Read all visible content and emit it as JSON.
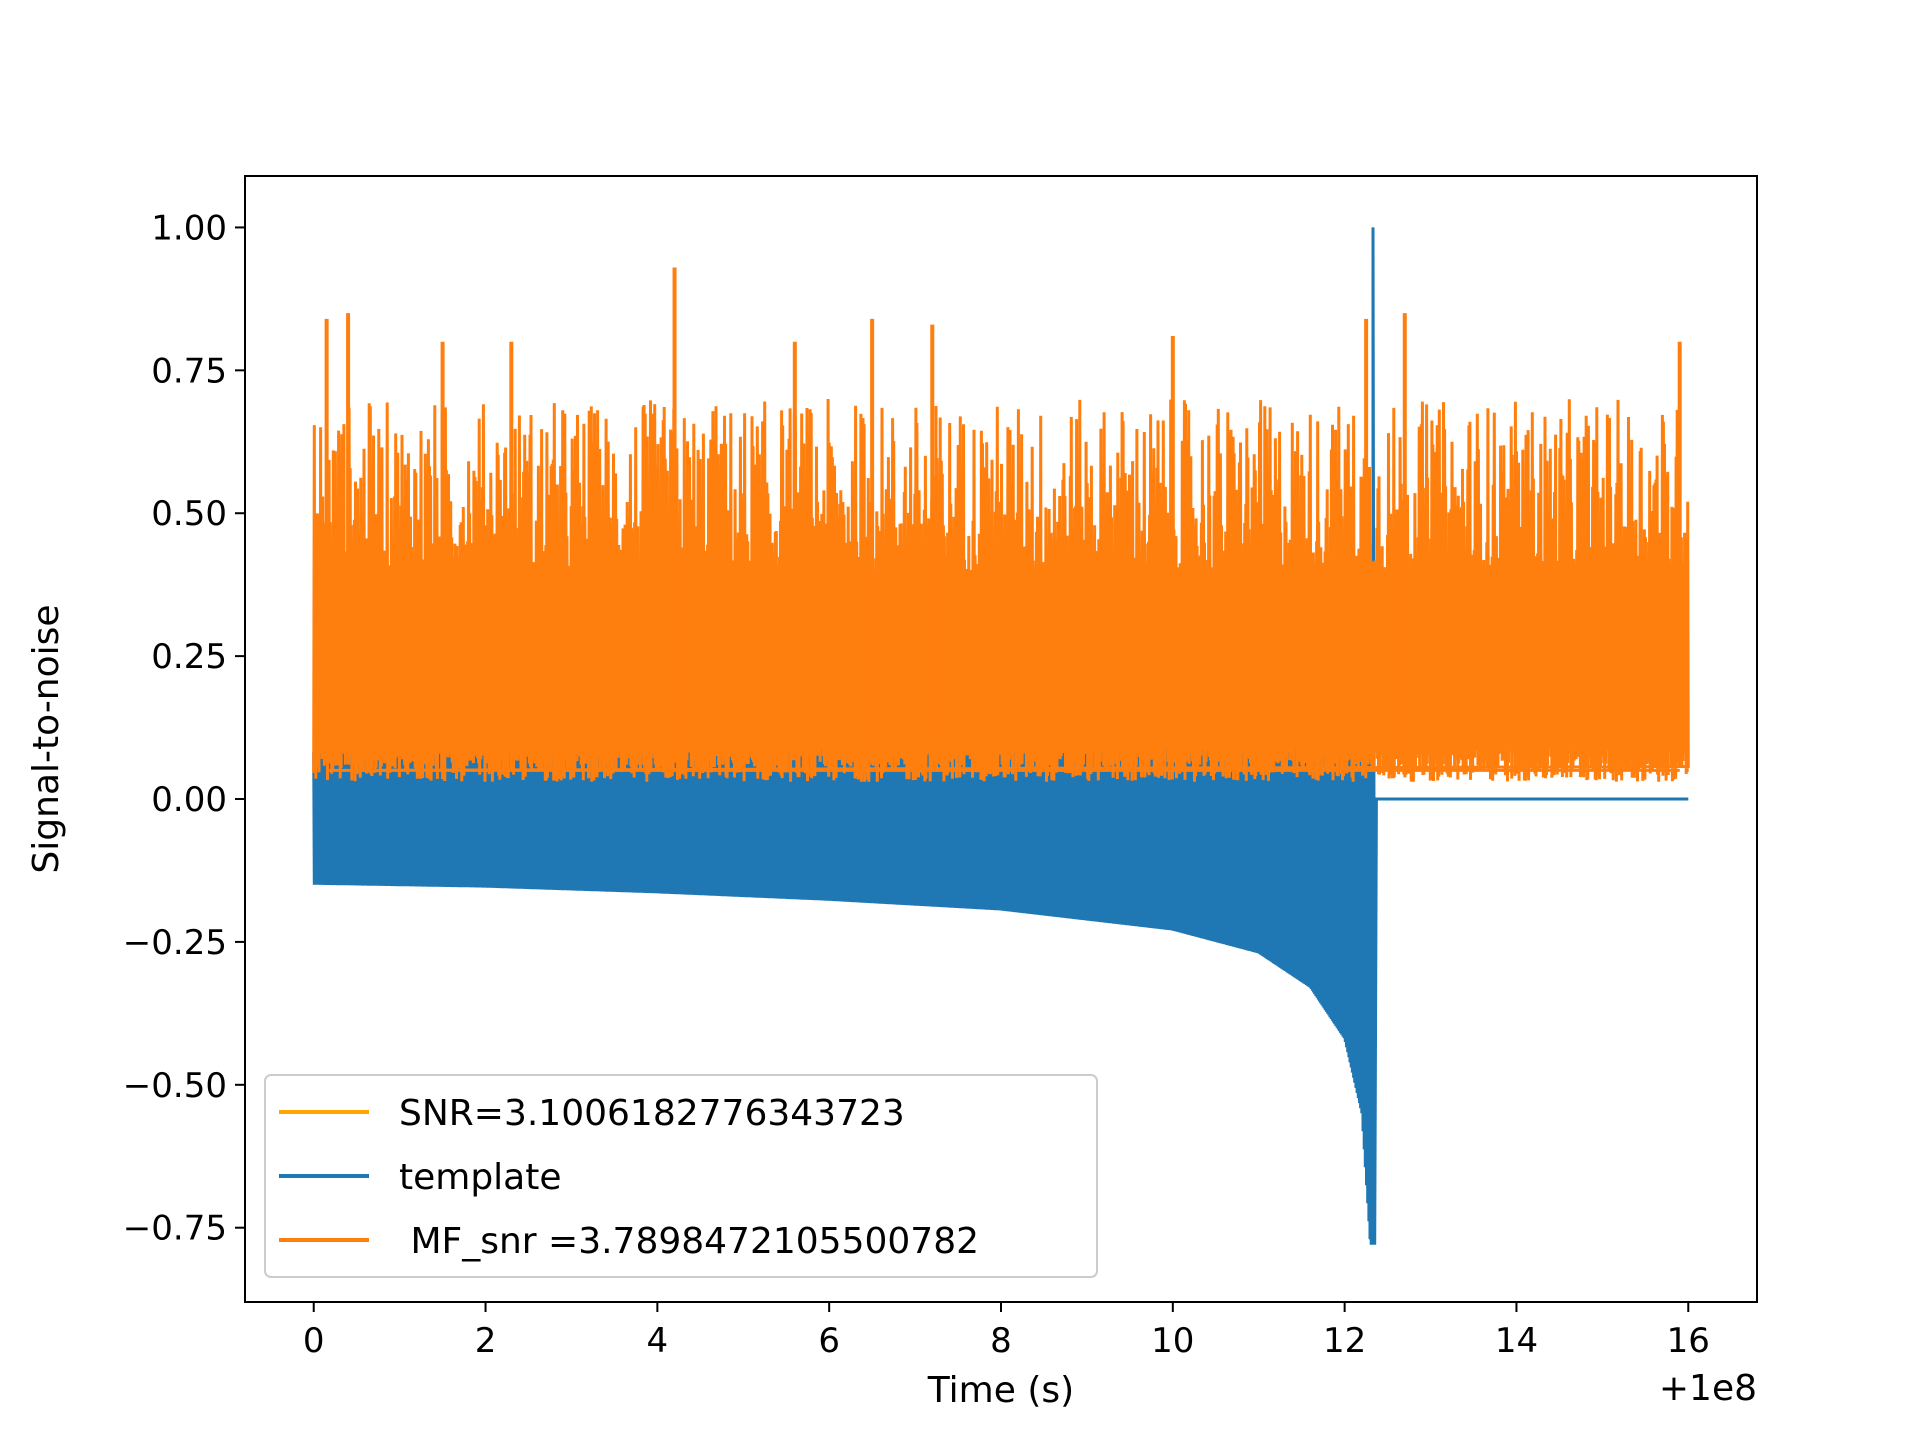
{
  "chart_data": {
    "type": "line",
    "title": "",
    "xlabel": "Time (s)",
    "ylabel": "Signal-to-noise",
    "x_offset_label": "+1e8",
    "xlim": [
      -0.8,
      16.8
    ],
    "ylim": [
      -0.88,
      1.09
    ],
    "xticks": [
      0,
      2,
      4,
      6,
      8,
      10,
      12,
      14,
      16
    ],
    "xtick_labels": [
      "0",
      "2",
      "4",
      "6",
      "8",
      "10",
      "12",
      "14",
      "16"
    ],
    "yticks": [
      1.0,
      0.75,
      0.5,
      0.25,
      0.0,
      -0.25,
      -0.5,
      -0.75
    ],
    "ytick_labels": [
      "1.00",
      "0.75",
      "0.50",
      "0.25",
      "0.00",
      "−0.25",
      "−0.50",
      "−0.75"
    ],
    "grid": false,
    "legend_position": "lower-left",
    "series": [
      {
        "name": "SNR=3.1006182776343723",
        "color": "#ffa500",
        "values": []
      },
      {
        "name": "template",
        "color": "#1f77b4",
        "x_range": [
          0,
          16
        ],
        "merger_time": 12.33,
        "lower_envelope": [
          [
            0,
            -0.15
          ],
          [
            2,
            -0.155
          ],
          [
            4,
            -0.165
          ],
          [
            6,
            -0.178
          ],
          [
            8,
            -0.195
          ],
          [
            10,
            -0.23
          ],
          [
            11,
            -0.27
          ],
          [
            11.6,
            -0.33
          ],
          [
            12.0,
            -0.42
          ],
          [
            12.2,
            -0.55
          ],
          [
            12.3,
            -0.78
          ]
        ],
        "upper_envelope": [
          [
            0,
            0.06
          ],
          [
            4.6,
            0.16
          ],
          [
            12.3,
            0.09
          ]
        ],
        "peak": [
          12.33,
          1.0
        ],
        "post_merger_value": 0.0
      },
      {
        "name": " MF_snr =3.7898472105500782",
        "color": "#ff7f0e",
        "x_range": [
          0,
          16
        ],
        "typical_range": [
          0.03,
          0.55
        ],
        "spikes": [
          [
            0.15,
            0.84
          ],
          [
            0.4,
            0.85
          ],
          [
            1.5,
            0.8
          ],
          [
            2.3,
            0.8
          ],
          [
            4.2,
            0.93
          ],
          [
            5.6,
            0.8
          ],
          [
            6.5,
            0.84
          ],
          [
            7.2,
            0.83
          ],
          [
            10.0,
            0.81
          ],
          [
            12.25,
            0.84
          ],
          [
            12.7,
            0.85
          ],
          [
            15.9,
            0.8
          ]
        ]
      }
    ]
  }
}
